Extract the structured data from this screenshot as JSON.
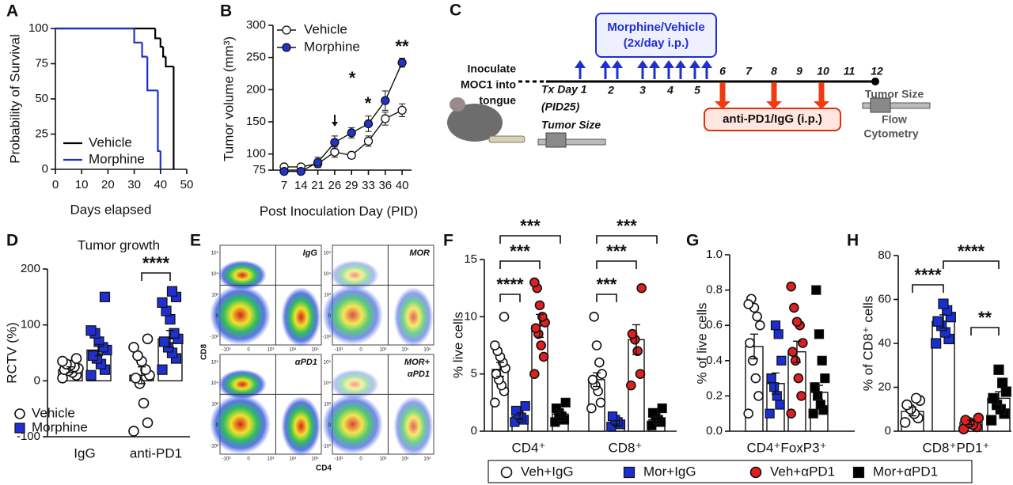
{
  "chart_data": [
    {
      "type": "step",
      "label": "A",
      "ylabel": "Probability of Survival",
      "xlabel": "Days elapsed",
      "xlim": [
        0,
        50
      ],
      "xticks": [
        0,
        10,
        20,
        30,
        40,
        50
      ],
      "ylim": [
        0,
        100
      ],
      "yticks": [
        0,
        25,
        50,
        75,
        100
      ],
      "series": [
        {
          "name": "Vehicle",
          "color": "#000000",
          "x": [
            0,
            38,
            40,
            41,
            42,
            45
          ],
          "values": [
            100,
            93,
            87,
            80,
            73,
            0
          ]
        },
        {
          "name": "Morphine",
          "color": "#1f2fd0",
          "x": [
            0,
            30,
            33,
            35,
            39,
            40
          ],
          "values": [
            100,
            90,
            80,
            56,
            13,
            0
          ]
        }
      ]
    },
    {
      "type": "line",
      "label": "B",
      "ylabel": "Tumor volume (mm³)",
      "xlabel": "Post Inoculation Day (PID)",
      "categories": [
        "7",
        "14",
        "21",
        "26",
        "29",
        "33",
        "36",
        "40"
      ],
      "ylim": [
        75,
        300
      ],
      "yticks": [
        75,
        100,
        150,
        200,
        250,
        300
      ],
      "series": [
        {
          "name": "Vehicle",
          "color": "#ffffff",
          "values": [
            80,
            80,
            85,
            103,
            98,
            120,
            155,
            168
          ],
          "errors": [
            3,
            3,
            5,
            8,
            5,
            8,
            10,
            10
          ]
        },
        {
          "name": "Morphine",
          "color": "#2233cc",
          "values": [
            73,
            73,
            87,
            118,
            133,
            147,
            183,
            242
          ],
          "errors": [
            3,
            3,
            8,
            10,
            8,
            12,
            15,
            7
          ]
        }
      ],
      "annotations": [
        "*",
        "*",
        "**"
      ]
    },
    {
      "type": "bar",
      "label": "D",
      "title": "Tumor growth",
      "ylabel": "RCTV (%)",
      "categories": [
        "IgG",
        "anti-PD1"
      ],
      "ylim": [
        -100,
        200
      ],
      "yticks": [
        -100,
        0,
        100,
        200
      ],
      "series": [
        {
          "name": "Vehicle",
          "color": "#ffffff",
          "marker": "circle",
          "values": [
            20,
            10
          ],
          "errors": [
            5,
            15
          ],
          "points": [
            [
              5,
              10,
              15,
              18,
              20,
              22,
              25,
              28,
              30,
              35,
              40
            ],
            [
              -90,
              -75,
              -40,
              -5,
              5,
              10,
              20,
              35,
              45,
              60,
              75
            ]
          ]
        },
        {
          "name": "Morphine",
          "color": "#1f2fd0",
          "marker": "square",
          "values": [
            55,
            75
          ],
          "errors": [
            10,
            15
          ],
          "points": [
            [
              10,
              20,
              30,
              40,
              45,
              55,
              60,
              70,
              85,
              90,
              150
            ],
            [
              20,
              40,
              50,
              60,
              70,
              75,
              85,
              110,
              125,
              140,
              150,
              160
            ]
          ]
        }
      ],
      "annotations": [
        "****"
      ]
    },
    {
      "type": "bar",
      "label": "F",
      "ylabel": "% live cells",
      "categories": [
        "CD4⁺",
        "CD8⁺"
      ],
      "ylim": [
        0,
        15
      ],
      "yticks": [
        0,
        5,
        10,
        15
      ],
      "series": [
        {
          "name": "Veh+IgG",
          "color": "#ffffff",
          "marker": "circle",
          "values": [
            5.4,
            4.5
          ],
          "errors": [
            0.6,
            0.6
          ],
          "points": [
            [
              2.5,
              3.5,
              4,
              4.5,
              5,
              5.5,
              6,
              6.5,
              7,
              7.5,
              10
            ],
            [
              2,
              2.5,
              3.5,
              4,
              4.5,
              5,
              6,
              7.5,
              10
            ]
          ]
        },
        {
          "name": "Mor+IgG",
          "color": "#1a2fd1",
          "marker": "square",
          "values": [
            1.3,
            0.7
          ],
          "errors": [
            0.3,
            0.2
          ],
          "points": [
            [
              0.8,
              1,
              1.2,
              1.5,
              1.8,
              2.2
            ],
            [
              0.4,
              0.6,
              0.8,
              1,
              1.3
            ]
          ]
        },
        {
          "name": "Veh+αPD1",
          "color": "#e02020",
          "marker": "circle",
          "values": [
            9.2,
            8.0
          ],
          "errors": [
            1.0,
            1.3
          ],
          "points": [
            [
              5,
              6.5,
              7.5,
              8.5,
              9,
              9.5,
              10,
              11,
              12.5,
              13
            ],
            [
              4,
              5,
              7,
              8,
              8.5,
              12.5
            ]
          ]
        },
        {
          "name": "Mor+αPD1",
          "color": "#000000",
          "marker": "square",
          "values": [
            1.5,
            1.0
          ],
          "errors": [
            0.3,
            0.3
          ],
          "points": [
            [
              0.8,
              1,
              1.3,
              1.6,
              2,
              2.5
            ],
            [
              0.5,
              0.8,
              1,
              1.3,
              1.6,
              2
            ]
          ]
        }
      ],
      "annotations": [
        "****",
        "***",
        "***",
        "***",
        "***",
        "***"
      ]
    },
    {
      "type": "bar",
      "label": "G",
      "ylabel": "% of live cells",
      "categories": [
        "CD4⁺FoxP3⁺"
      ],
      "ylim": [
        0,
        1
      ],
      "yticks": [
        {
          "value": 0,
          "label": "0.0"
        },
        0.2,
        0.4,
        0.6,
        0.8,
        {
          "value": 1,
          "label": "1.0"
        }
      ],
      "series": [
        {
          "name": "Veh+IgG",
          "color": "#ffffff",
          "marker": "circle",
          "values": [
            0.48
          ],
          "errors": [
            0.07
          ],
          "points": [
            [
              0.1,
              0.2,
              0.3,
              0.4,
              0.5,
              0.6,
              0.65,
              0.7,
              0.75,
              0.72
            ]
          ]
        },
        {
          "name": "Mor+IgG",
          "color": "#1a2fd1",
          "marker": "square",
          "values": [
            0.27
          ],
          "errors": [
            0.06
          ],
          "points": [
            [
              0.1,
              0.15,
              0.2,
              0.25,
              0.3,
              0.4,
              0.55,
              0.6
            ]
          ]
        },
        {
          "name": "Veh+αPD1",
          "color": "#e02020",
          "marker": "circle",
          "values": [
            0.45
          ],
          "errors": [
            0.06
          ],
          "points": [
            [
              0.1,
              0.2,
              0.3,
              0.4,
              0.45,
              0.5,
              0.6,
              0.62,
              0.7,
              0.82
            ]
          ]
        },
        {
          "name": "Mor+αPD1",
          "color": "#000000",
          "marker": "square",
          "values": [
            0.22
          ],
          "errors": [
            0.04
          ],
          "points": [
            [
              0.1,
              0.12,
              0.15,
              0.2,
              0.25,
              0.3,
              0.4,
              0.55,
              0.8
            ]
          ]
        }
      ]
    },
    {
      "type": "bar",
      "label": "H",
      "ylabel": "% of  CD8⁺ cells",
      "categories": [
        "CD8⁺PD1⁺"
      ],
      "ylim": [
        0,
        80
      ],
      "yticks": [
        0,
        20,
        40,
        60,
        80
      ],
      "series": [
        {
          "name": "Veh+IgG",
          "color": "#ffffff",
          "marker": "circle",
          "values": [
            9
          ],
          "errors": [
            2
          ],
          "points": [
            [
              4,
              6,
              8,
              10,
              12,
              14,
              15
            ]
          ]
        },
        {
          "name": "Mor+IgG",
          "color": "#1a2fd1",
          "marker": "square",
          "values": [
            50
          ],
          "errors": [
            3
          ],
          "points": [
            [
              40,
              42,
              45,
              48,
              50,
              52,
              55,
              58
            ]
          ]
        },
        {
          "name": "Veh+αPD1",
          "color": "#e02020",
          "marker": "circle",
          "values": [
            4
          ],
          "errors": [
            1
          ],
          "points": [
            [
              1,
              2,
              3,
              4,
              5,
              6
            ]
          ]
        },
        {
          "name": "Mor+αPD1",
          "color": "#000000",
          "marker": "square",
          "values": [
            15
          ],
          "errors": [
            3
          ],
          "points": [
            [
              5,
              8,
              10,
              12,
              15,
              18,
              22,
              28
            ]
          ]
        }
      ],
      "annotations": [
        "****",
        "****",
        "**"
      ]
    }
  ],
  "schematic": {
    "label": "C",
    "inoculate": [
      "Inoculate",
      "MOC1 into",
      "tongue"
    ],
    "treatment_start": [
      "Tx Day 1",
      "(PID25)",
      "Tumor Size"
    ],
    "days": [
      "2",
      "3",
      "4",
      "5",
      "6",
      "7",
      "8",
      "9",
      "10",
      "11",
      "12"
    ],
    "morphine_box": [
      "Morphine/Vehicle",
      "(2x/day i.p.)"
    ],
    "antibody_box": "anti-PD1/IgG (i.p.)",
    "endpoint": [
      "Tumor Size",
      "Flow",
      "Cytometry"
    ]
  },
  "flow_plot": {
    "label": "E",
    "panels": [
      [
        "IgG"
      ],
      [
        "MOR"
      ],
      [
        "αPD1"
      ],
      [
        "MOR+",
        "αPD1"
      ]
    ],
    "x_axis": "CD4",
    "y_axis": "CD8",
    "xticks": [
      "-10³",
      "0",
      "10³",
      "10⁴",
      "10⁵"
    ],
    "yticks": [
      "10⁵",
      "10⁴",
      "10³",
      "0",
      "-10³"
    ]
  }
}
